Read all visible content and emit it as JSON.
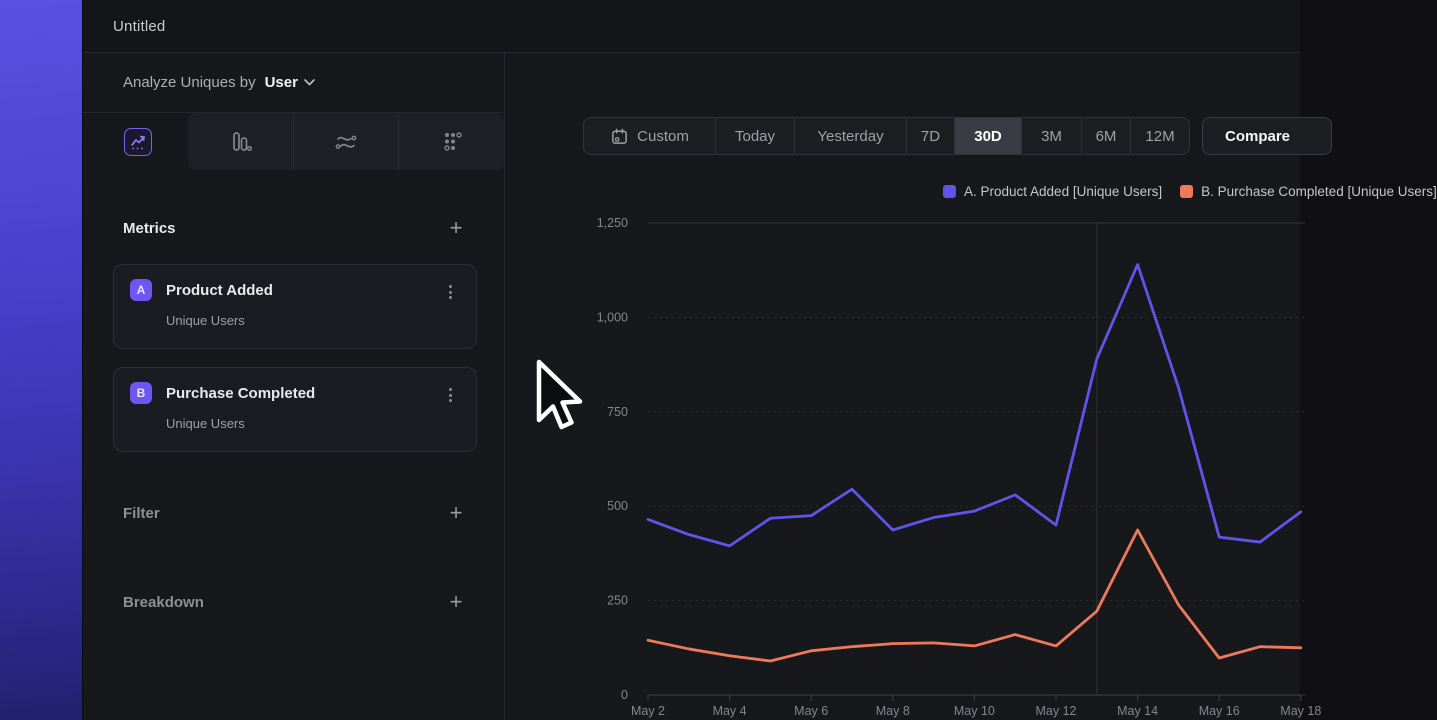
{
  "window": {
    "title": "Untitled"
  },
  "colors": {
    "accent_purple": "#6e56f3",
    "series_a": "#5f55e8",
    "series_b": "#ee7a5c",
    "selected_tab_border": "#7a63f0"
  },
  "sidebar": {
    "analyze_label": "Analyze Uniques by",
    "analyze_value": "User",
    "chart_type_tabs": [
      {
        "icon": "line-chart-icon",
        "selected": true
      },
      {
        "icon": "bar-chart-icon",
        "selected": false
      },
      {
        "icon": "flow-chart-icon",
        "selected": false
      },
      {
        "icon": "grid-dots-icon",
        "selected": false
      }
    ],
    "metrics": {
      "heading": "Metrics",
      "add_label": "+",
      "items": [
        {
          "badge": "A",
          "title": "Product Added",
          "subtitle": "Unique Users"
        },
        {
          "badge": "B",
          "title": "Purchase Completed",
          "subtitle": "Unique Users"
        }
      ]
    },
    "filter": {
      "heading": "Filter",
      "add_label": "+"
    },
    "breakdown": {
      "heading": "Breakdown",
      "add_label": "+"
    }
  },
  "time_range": {
    "buttons": [
      {
        "label": "Custom",
        "icon": "calendar-icon"
      },
      {
        "label": "Today"
      },
      {
        "label": "Yesterday"
      },
      {
        "label": "7D"
      },
      {
        "label": "30D"
      },
      {
        "label": "3M"
      },
      {
        "label": "6M"
      },
      {
        "label": "12M"
      }
    ],
    "selected": "30D",
    "compare_label": "Compare"
  },
  "legend": [
    {
      "label": "A. Product Added [Unique Users]",
      "color": "#5f55e8"
    },
    {
      "label": "B. Purchase Completed [Unique Users]",
      "color": "#ee7a5c"
    }
  ],
  "chart_data": {
    "type": "line",
    "title": "",
    "x": [
      "May 2",
      "May 3",
      "May 4",
      "May 5",
      "May 6",
      "May 7",
      "May 8",
      "May 9",
      "May 10",
      "May 11",
      "May 12",
      "May 13",
      "May 14",
      "May 15",
      "May 16",
      "May 17",
      "May 18"
    ],
    "x_tick_labels": [
      "May 2",
      "May 4",
      "May 6",
      "May 8",
      "May 10",
      "May 12",
      "May 14",
      "May 16",
      "May 18"
    ],
    "series": [
      {
        "name": "A. Product Added [Unique Users]",
        "color": "#5f55e8",
        "values": [
          465,
          425,
          395,
          468,
          475,
          545,
          437,
          470,
          487,
          530,
          450,
          890,
          1140,
          815,
          418,
          405,
          485
        ]
      },
      {
        "name": "B. Purchase Completed [Unique Users]",
        "color": "#ee7a5c",
        "values": [
          145,
          122,
          104,
          90,
          117,
          128,
          136,
          138,
          130,
          160,
          130,
          222,
          437,
          239,
          98,
          128,
          125
        ]
      }
    ],
    "ylim": [
      0,
      1250
    ],
    "yticks": [
      0,
      250,
      500,
      750,
      1000,
      1250
    ],
    "ytick_labels": [
      "0",
      "250",
      "500",
      "750",
      "1,000",
      "1,250"
    ],
    "grid": "horizontal",
    "vline_x": "May 13",
    "legend_position": "top-right"
  }
}
